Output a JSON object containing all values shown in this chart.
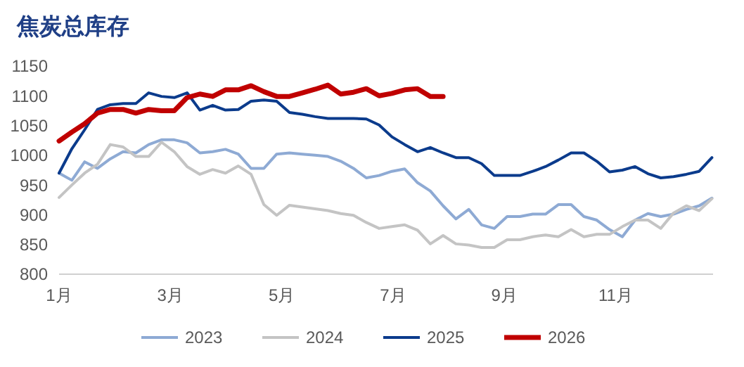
{
  "chart_data": {
    "type": "line",
    "title": "焦炭总库存",
    "x": [
      1,
      1.23,
      1.46,
      1.69,
      1.92,
      2.15,
      2.38,
      2.61,
      2.84,
      3.07,
      3.3,
      3.53,
      3.76,
      3.99,
      4.22,
      4.45,
      4.68,
      4.91,
      5.14,
      5.37,
      5.6,
      5.83,
      6.06,
      6.29,
      6.52,
      6.75,
      6.98,
      7.21,
      7.44,
      7.67,
      7.9,
      8.13,
      8.36,
      8.59,
      8.82,
      9.05,
      9.28,
      9.51,
      9.74,
      9.97,
      10.2,
      10.43,
      10.66,
      10.89,
      11.12,
      11.35,
      11.58,
      11.81,
      12.04,
      12.27,
      12.5,
      12.73
    ],
    "series": [
      {
        "name": "2023",
        "color": "#8eaad4",
        "values": [
          970,
          958,
          989,
          978,
          994,
          1006,
          1004,
          1018,
          1026,
          1026,
          1021,
          1004,
          1006,
          1010,
          1002,
          978,
          978,
          1002,
          1004,
          1002,
          1000,
          998,
          990,
          978,
          962,
          966,
          973,
          977,
          954,
          940,
          915,
          893,
          909,
          883,
          877,
          897,
          897,
          901,
          901,
          917,
          917,
          897,
          891,
          875,
          863,
          891,
          902,
          897,
          901,
          909,
          915,
          928
        ]
      },
      {
        "name": "2024",
        "color": "#c4c4c4",
        "values": [
          929,
          950,
          970,
          985,
          1018,
          1014,
          998,
          998,
          1022,
          1006,
          981,
          968,
          976,
          970,
          982,
          968,
          917,
          899,
          916,
          913,
          910,
          907,
          902,
          899,
          887,
          877,
          880,
          883,
          874,
          851,
          865,
          851,
          849,
          845,
          845,
          858,
          858,
          863,
          866,
          863,
          875,
          863,
          867,
          867,
          880,
          891,
          891,
          877,
          903,
          915,
          907,
          927
        ]
      },
      {
        "name": "2025",
        "color": "#0b3b8c",
        "values": [
          970,
          1011,
          1043,
          1077,
          1085,
          1087,
          1087,
          1105,
          1099,
          1097,
          1105,
          1076,
          1084,
          1076,
          1077,
          1091,
          1093,
          1091,
          1072,
          1069,
          1065,
          1062,
          1062,
          1062,
          1061,
          1051,
          1031,
          1018,
          1006,
          1013,
          1004,
          996,
          996,
          986,
          966,
          966,
          966,
          973,
          981,
          992,
          1004,
          1004,
          990,
          972,
          975,
          981,
          969,
          962,
          964,
          968,
          973,
          996
        ]
      },
      {
        "name": "2026",
        "color": "#c00000",
        "x": [
          1,
          1.23,
          1.46,
          1.69,
          1.92,
          2.15,
          2.38,
          2.61,
          2.84,
          3.07,
          3.3,
          3.53,
          3.76,
          3.99,
          4.22,
          4.45,
          4.68,
          4.91,
          5.14,
          5.37,
          5.6,
          5.83,
          6.06,
          6.29,
          6.52,
          6.75,
          6.98,
          7.21,
          7.44,
          7.67,
          7.9
        ],
        "values": [
          1024,
          1039,
          1053,
          1071,
          1077,
          1077,
          1071,
          1077,
          1075,
          1075,
          1097,
          1103,
          1099,
          1110,
          1110,
          1117,
          1107,
          1099,
          1099,
          1105,
          1111,
          1118,
          1103,
          1106,
          1112,
          1100,
          1104,
          1110,
          1112,
          1099,
          1099
        ]
      }
    ],
    "xlim": [
      1,
      12.75
    ],
    "xticks": [
      {
        "value": 1,
        "label": "1月"
      },
      {
        "value": 3,
        "label": "3月"
      },
      {
        "value": 5,
        "label": "5月"
      },
      {
        "value": 7,
        "label": "7月"
      },
      {
        "value": 9,
        "label": "9月"
      },
      {
        "value": 11,
        "label": "11月"
      }
    ],
    "ylim": [
      800,
      1150
    ],
    "yticks": [
      800,
      850,
      900,
      950,
      1000,
      1050,
      1100,
      1150
    ],
    "grid": false,
    "legend": "bottom",
    "marker": "none",
    "line_style": "solid"
  }
}
